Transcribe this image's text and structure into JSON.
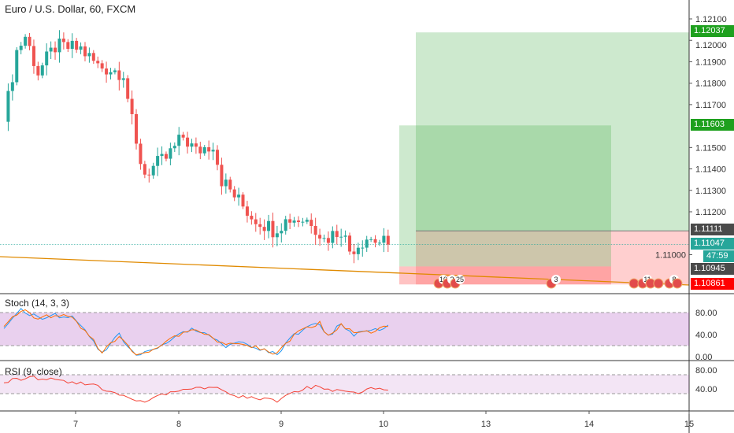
{
  "header": {
    "title": "Euro / U.S. Dollar, 60, FXCM"
  },
  "colors": {
    "up": "#26a69a",
    "down": "#ef5350",
    "tp": "#1ea01e",
    "sl": "#ff0000",
    "last": "#26a69a",
    "entry": "#4a4a4a"
  },
  "price_labels": {
    "tp_far": "1.12037",
    "tp_near": "1.11603",
    "entry": "1.11111",
    "last": "1.11047",
    "countdown": "47:59",
    "entry2": "1.10945",
    "sl": "1.10861"
  },
  "events": [
    "10",
    "2",
    "25",
    "3",
    "11",
    "8"
  ],
  "stoch": {
    "title": "Stoch (14, 3, 3)",
    "ticks": [
      "80.00",
      "40.00",
      "0.00"
    ]
  },
  "rsi": {
    "title": "RSI (9, close)",
    "ticks": [
      "80.00",
      "40.00"
    ]
  },
  "chart_data": {
    "type": "candlestick",
    "symbol": "EURUSD",
    "timeframe": "60",
    "yticks": [
      "1.12100",
      "1.12000",
      "1.11900",
      "1.11800",
      "1.11700",
      "1.11500",
      "1.11400",
      "1.11300",
      "1.11200",
      "1.11000"
    ],
    "ylim": [
      1.1084,
      1.1215
    ],
    "xticks": [
      "7",
      "8",
      "9",
      "10",
      "13",
      "14",
      "15"
    ],
    "close_keypoints": [
      [
        0,
        1.1162
      ],
      [
        3,
        1.1195
      ],
      [
        5,
        1.1202
      ],
      [
        8,
        1.1185
      ],
      [
        12,
        1.1197
      ],
      [
        18,
        1.1196
      ],
      [
        22,
        1.1188
      ],
      [
        28,
        1.1185
      ],
      [
        31,
        1.115
      ],
      [
        33,
        1.1138
      ],
      [
        38,
        1.1145
      ],
      [
        42,
        1.1155
      ],
      [
        45,
        1.1148
      ],
      [
        49,
        1.1152
      ],
      [
        51,
        1.1135
      ],
      [
        55,
        1.1125
      ],
      [
        58,
        1.1118
      ],
      [
        63,
        1.1112
      ],
      [
        67,
        1.1117
      ],
      [
        72,
        1.1116
      ],
      [
        75,
        1.1107
      ],
      [
        79,
        1.1112
      ],
      [
        81,
        1.1102
      ],
      [
        85,
        1.1108
      ],
      [
        88,
        1.1106
      ],
      [
        90,
        1.11047
      ]
    ],
    "stoch_keypoints": [
      [
        0,
        55
      ],
      [
        4,
        85
      ],
      [
        8,
        70
      ],
      [
        12,
        75
      ],
      [
        16,
        70
      ],
      [
        20,
        40
      ],
      [
        23,
        5
      ],
      [
        27,
        40
      ],
      [
        31,
        3
      ],
      [
        35,
        15
      ],
      [
        40,
        35
      ],
      [
        44,
        50
      ],
      [
        48,
        40
      ],
      [
        52,
        20
      ],
      [
        56,
        25
      ],
      [
        60,
        15
      ],
      [
        64,
        5
      ],
      [
        68,
        40
      ],
      [
        72,
        55
      ],
      [
        74,
        60
      ],
      [
        76,
        35
      ],
      [
        79,
        60
      ],
      [
        82,
        40
      ],
      [
        86,
        45
      ],
      [
        90,
        55
      ]
    ],
    "rsi_keypoints": [
      [
        0,
        55
      ],
      [
        6,
        65
      ],
      [
        10,
        60
      ],
      [
        16,
        55
      ],
      [
        22,
        45
      ],
      [
        30,
        20
      ],
      [
        33,
        15
      ],
      [
        40,
        35
      ],
      [
        46,
        45
      ],
      [
        50,
        40
      ],
      [
        55,
        25
      ],
      [
        60,
        20
      ],
      [
        64,
        15
      ],
      [
        70,
        40
      ],
      [
        74,
        45
      ],
      [
        78,
        35
      ],
      [
        82,
        30
      ],
      [
        86,
        40
      ],
      [
        90,
        40
      ]
    ],
    "positions": [
      {
        "entry": 1.10945,
        "tp": 1.11603,
        "sl": 1.10861
      },
      {
        "entry": 1.11111,
        "tp": 1.12037,
        "sl": 1.10861
      }
    ]
  }
}
